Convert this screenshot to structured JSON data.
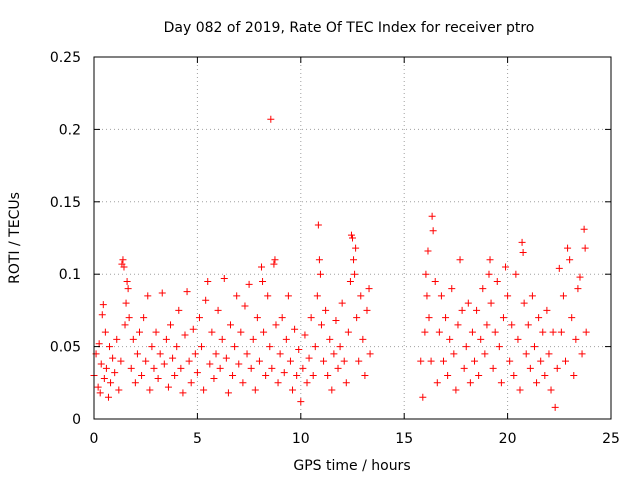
{
  "chart_data": {
    "type": "scatter",
    "title": "Day 082 of 2019, Rate Of TEC Index for receiver ptro",
    "xlabel": "GPS time / hours",
    "ylabel": "ROTI / TECUs",
    "xlim": [
      0,
      25
    ],
    "ylim": [
      0,
      0.25
    ],
    "xticks": [
      0,
      5,
      10,
      15,
      20,
      25
    ],
    "xtick_labels": [
      "0",
      "5",
      "10",
      "15",
      "20",
      "25"
    ],
    "yticks": [
      0,
      0.05,
      0.1,
      0.15,
      0.2,
      0.25
    ],
    "ytick_labels": [
      "0",
      "0.05",
      "0.1",
      "0.15",
      "0.2",
      "0.25"
    ],
    "grid": true,
    "marker": "plus",
    "color": "#ff0000",
    "data_gap_hours": [
      13.4,
      15.7
    ],
    "series": [
      {
        "name": "ROTI",
        "points": [
          [
            0.0,
            0.03
          ],
          [
            0.1,
            0.045
          ],
          [
            0.2,
            0.022
          ],
          [
            0.25,
            0.052
          ],
          [
            0.3,
            0.018
          ],
          [
            0.35,
            0.038
          ],
          [
            0.4,
            0.072
          ],
          [
            0.45,
            0.079
          ],
          [
            0.5,
            0.028
          ],
          [
            0.55,
            0.06
          ],
          [
            0.6,
            0.035
          ],
          [
            0.7,
            0.015
          ],
          [
            0.75,
            0.05
          ],
          [
            0.8,
            0.025
          ],
          [
            0.9,
            0.042
          ],
          [
            1.0,
            0.032
          ],
          [
            1.1,
            0.055
          ],
          [
            1.2,
            0.02
          ],
          [
            1.3,
            0.04
          ],
          [
            1.35,
            0.107
          ],
          [
            1.4,
            0.11
          ],
          [
            1.45,
            0.105
          ],
          [
            1.5,
            0.065
          ],
          [
            1.55,
            0.08
          ],
          [
            1.6,
            0.095
          ],
          [
            1.65,
            0.09
          ],
          [
            1.7,
            0.07
          ],
          [
            1.8,
            0.035
          ],
          [
            1.9,
            0.055
          ],
          [
            2.0,
            0.025
          ],
          [
            2.1,
            0.045
          ],
          [
            2.2,
            0.06
          ],
          [
            2.3,
            0.03
          ],
          [
            2.4,
            0.07
          ],
          [
            2.5,
            0.04
          ],
          [
            2.6,
            0.085
          ],
          [
            2.7,
            0.02
          ],
          [
            2.8,
            0.05
          ],
          [
            2.9,
            0.035
          ],
          [
            3.0,
            0.06
          ],
          [
            3.1,
            0.028
          ],
          [
            3.2,
            0.045
          ],
          [
            3.3,
            0.087
          ],
          [
            3.4,
            0.038
          ],
          [
            3.5,
            0.055
          ],
          [
            3.6,
            0.022
          ],
          [
            3.7,
            0.065
          ],
          [
            3.8,
            0.042
          ],
          [
            3.9,
            0.03
          ],
          [
            4.0,
            0.05
          ],
          [
            4.1,
            0.075
          ],
          [
            4.2,
            0.035
          ],
          [
            4.3,
            0.018
          ],
          [
            4.4,
            0.058
          ],
          [
            4.5,
            0.088
          ],
          [
            4.6,
            0.04
          ],
          [
            4.7,
            0.025
          ],
          [
            4.8,
            0.062
          ],
          [
            4.9,
            0.045
          ],
          [
            5.0,
            0.032
          ],
          [
            5.1,
            0.07
          ],
          [
            5.2,
            0.05
          ],
          [
            5.3,
            0.02
          ],
          [
            5.4,
            0.082
          ],
          [
            5.5,
            0.095
          ],
          [
            5.6,
            0.038
          ],
          [
            5.7,
            0.06
          ],
          [
            5.8,
            0.028
          ],
          [
            5.9,
            0.045
          ],
          [
            6.0,
            0.075
          ],
          [
            6.1,
            0.035
          ],
          [
            6.2,
            0.055
          ],
          [
            6.3,
            0.097
          ],
          [
            6.4,
            0.042
          ],
          [
            6.5,
            0.018
          ],
          [
            6.6,
            0.065
          ],
          [
            6.7,
            0.03
          ],
          [
            6.8,
            0.05
          ],
          [
            6.9,
            0.085
          ],
          [
            7.0,
            0.038
          ],
          [
            7.1,
            0.06
          ],
          [
            7.2,
            0.025
          ],
          [
            7.3,
            0.078
          ],
          [
            7.4,
            0.045
          ],
          [
            7.5,
            0.093
          ],
          [
            7.6,
            0.035
          ],
          [
            7.7,
            0.055
          ],
          [
            7.8,
            0.02
          ],
          [
            7.9,
            0.07
          ],
          [
            8.0,
            0.04
          ],
          [
            8.1,
            0.105
          ],
          [
            8.15,
            0.095
          ],
          [
            8.2,
            0.06
          ],
          [
            8.3,
            0.03
          ],
          [
            8.4,
            0.085
          ],
          [
            8.5,
            0.05
          ],
          [
            8.55,
            0.207
          ],
          [
            8.6,
            0.035
          ],
          [
            8.7,
            0.107
          ],
          [
            8.75,
            0.11
          ],
          [
            8.8,
            0.065
          ],
          [
            8.9,
            0.025
          ],
          [
            9.0,
            0.045
          ],
          [
            9.1,
            0.07
          ],
          [
            9.2,
            0.032
          ],
          [
            9.3,
            0.055
          ],
          [
            9.4,
            0.085
          ],
          [
            9.5,
            0.04
          ],
          [
            9.6,
            0.02
          ],
          [
            9.7,
            0.062
          ],
          [
            9.8,
            0.03
          ],
          [
            9.9,
            0.048
          ],
          [
            10.0,
            0.012
          ],
          [
            10.1,
            0.035
          ],
          [
            10.2,
            0.058
          ],
          [
            10.3,
            0.025
          ],
          [
            10.4,
            0.042
          ],
          [
            10.5,
            0.07
          ],
          [
            10.6,
            0.03
          ],
          [
            10.7,
            0.05
          ],
          [
            10.8,
            0.085
          ],
          [
            10.85,
            0.134
          ],
          [
            10.9,
            0.11
          ],
          [
            10.95,
            0.1
          ],
          [
            11.0,
            0.065
          ],
          [
            11.1,
            0.04
          ],
          [
            11.2,
            0.075
          ],
          [
            11.3,
            0.03
          ],
          [
            11.4,
            0.055
          ],
          [
            11.5,
            0.02
          ],
          [
            11.6,
            0.045
          ],
          [
            11.7,
            0.068
          ],
          [
            11.8,
            0.035
          ],
          [
            11.9,
            0.05
          ],
          [
            12.0,
            0.08
          ],
          [
            12.1,
            0.04
          ],
          [
            12.2,
            0.025
          ],
          [
            12.3,
            0.06
          ],
          [
            12.4,
            0.095
          ],
          [
            12.45,
            0.127
          ],
          [
            12.5,
            0.125
          ],
          [
            12.55,
            0.11
          ],
          [
            12.6,
            0.1
          ],
          [
            12.65,
            0.118
          ],
          [
            12.7,
            0.07
          ],
          [
            12.8,
            0.04
          ],
          [
            12.9,
            0.085
          ],
          [
            13.0,
            0.055
          ],
          [
            13.1,
            0.03
          ],
          [
            13.2,
            0.075
          ],
          [
            13.3,
            0.09
          ],
          [
            13.35,
            0.045
          ],
          [
            15.8,
            0.04
          ],
          [
            15.9,
            0.015
          ],
          [
            16.0,
            0.06
          ],
          [
            16.05,
            0.1
          ],
          [
            16.1,
            0.085
          ],
          [
            16.15,
            0.116
          ],
          [
            16.2,
            0.07
          ],
          [
            16.3,
            0.04
          ],
          [
            16.35,
            0.14
          ],
          [
            16.4,
            0.13
          ],
          [
            16.5,
            0.095
          ],
          [
            16.6,
            0.025
          ],
          [
            16.7,
            0.06
          ],
          [
            16.8,
            0.085
          ],
          [
            16.9,
            0.04
          ],
          [
            17.0,
            0.07
          ],
          [
            17.1,
            0.03
          ],
          [
            17.2,
            0.055
          ],
          [
            17.3,
            0.09
          ],
          [
            17.4,
            0.045
          ],
          [
            17.5,
            0.02
          ],
          [
            17.6,
            0.065
          ],
          [
            17.7,
            0.11
          ],
          [
            17.8,
            0.075
          ],
          [
            17.9,
            0.035
          ],
          [
            18.0,
            0.05
          ],
          [
            18.1,
            0.08
          ],
          [
            18.2,
            0.025
          ],
          [
            18.3,
            0.06
          ],
          [
            18.4,
            0.04
          ],
          [
            18.5,
            0.075
          ],
          [
            18.6,
            0.03
          ],
          [
            18.7,
            0.055
          ],
          [
            18.8,
            0.09
          ],
          [
            18.9,
            0.045
          ],
          [
            19.0,
            0.065
          ],
          [
            19.1,
            0.1
          ],
          [
            19.15,
            0.11
          ],
          [
            19.2,
            0.08
          ],
          [
            19.3,
            0.035
          ],
          [
            19.4,
            0.06
          ],
          [
            19.5,
            0.095
          ],
          [
            19.6,
            0.05
          ],
          [
            19.7,
            0.025
          ],
          [
            19.8,
            0.07
          ],
          [
            19.9,
            0.105
          ],
          [
            20.0,
            0.085
          ],
          [
            20.1,
            0.04
          ],
          [
            20.2,
            0.065
          ],
          [
            20.3,
            0.03
          ],
          [
            20.4,
            0.1
          ],
          [
            20.5,
            0.055
          ],
          [
            20.6,
            0.02
          ],
          [
            20.7,
            0.122
          ],
          [
            20.75,
            0.115
          ],
          [
            20.8,
            0.08
          ],
          [
            20.9,
            0.045
          ],
          [
            21.0,
            0.065
          ],
          [
            21.1,
            0.035
          ],
          [
            21.2,
            0.085
          ],
          [
            21.3,
            0.05
          ],
          [
            21.4,
            0.025
          ],
          [
            21.5,
            0.07
          ],
          [
            21.6,
            0.04
          ],
          [
            21.7,
            0.06
          ],
          [
            21.8,
            0.03
          ],
          [
            21.9,
            0.075
          ],
          [
            22.0,
            0.045
          ],
          [
            22.1,
            0.02
          ],
          [
            22.2,
            0.06
          ],
          [
            22.3,
            0.008
          ],
          [
            22.4,
            0.035
          ],
          [
            22.5,
            0.104
          ],
          [
            22.6,
            0.06
          ],
          [
            22.7,
            0.085
          ],
          [
            22.8,
            0.04
          ],
          [
            22.9,
            0.118
          ],
          [
            23.0,
            0.11
          ],
          [
            23.1,
            0.07
          ],
          [
            23.2,
            0.03
          ],
          [
            23.3,
            0.055
          ],
          [
            23.4,
            0.09
          ],
          [
            23.5,
            0.098
          ],
          [
            23.6,
            0.045
          ],
          [
            23.7,
            0.131
          ],
          [
            23.75,
            0.118
          ],
          [
            23.8,
            0.06
          ]
        ]
      }
    ]
  }
}
